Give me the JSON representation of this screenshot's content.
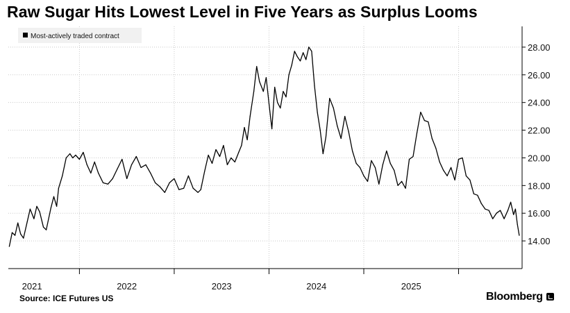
{
  "title": "Raw Sugar Hits Lowest Level in Five Years as Surplus Looms",
  "source": "Source: ICE Futures US",
  "brand": "Bloomberg",
  "colors": {
    "line": "#000000",
    "grid": "#c8c8c8",
    "axis": "#000000",
    "legend_bg": "#f1f1f1"
  },
  "chart_data": {
    "type": "line",
    "title": "Raw Sugar Hits Lowest Level in Five Years as Surplus Looms",
    "xlabel": "",
    "ylabel": "",
    "ylim": [
      12.0,
      29.5
    ],
    "xlim": [
      2020.25,
      2025.67
    ],
    "y_ticks": [
      14,
      16,
      18,
      20,
      22,
      24,
      26,
      28
    ],
    "y_tick_labels": [
      "14.00",
      "16.00",
      "18.00",
      "20.00",
      "22.00",
      "24.00",
      "26.00",
      "28.00"
    ],
    "x_ticks": [
      2021.0,
      2022.0,
      2023.0,
      2024.0,
      2025.0
    ],
    "x_labels": [
      {
        "x": 2020.5,
        "label": "2021"
      },
      {
        "x": 2021.5,
        "label": "2022"
      },
      {
        "x": 2022.5,
        "label": "2023"
      },
      {
        "x": 2023.5,
        "label": "2024"
      },
      {
        "x": 2024.5,
        "label": "2025"
      }
    ],
    "grid": true,
    "legend": {
      "position": "top-left",
      "label": "Most-actively traded contract"
    },
    "series": [
      {
        "name": "Most-actively traded contract",
        "x": [
          2020.26,
          2020.29,
          2020.32,
          2020.35,
          2020.38,
          2020.41,
          2020.45,
          2020.48,
          2020.52,
          2020.55,
          2020.58,
          2020.62,
          2020.65,
          2020.7,
          2020.73,
          2020.76,
          2020.78,
          2020.82,
          2020.86,
          2020.9,
          2020.93,
          2020.96,
          2021.0,
          2021.04,
          2021.08,
          2021.12,
          2021.16,
          2021.2,
          2021.25,
          2021.3,
          2021.35,
          2021.4,
          2021.45,
          2021.5,
          2021.55,
          2021.6,
          2021.65,
          2021.7,
          2021.75,
          2021.8,
          2021.85,
          2021.9,
          2021.95,
          2022.0,
          2022.05,
          2022.1,
          2022.15,
          2022.2,
          2022.25,
          2022.28,
          2022.32,
          2022.36,
          2022.4,
          2022.44,
          2022.48,
          2022.52,
          2022.56,
          2022.6,
          2022.64,
          2022.68,
          2022.71,
          2022.74,
          2022.77,
          2022.8,
          2022.84,
          2022.87,
          2022.9,
          2022.94,
          2022.97,
          2023.0,
          2023.03,
          2023.06,
          2023.09,
          2023.12,
          2023.15,
          2023.18,
          2023.21,
          2023.24,
          2023.27,
          2023.3,
          2023.33,
          2023.36,
          2023.39,
          2023.42,
          2023.45,
          2023.48,
          2023.51,
          2023.54,
          2023.57,
          2023.6,
          2023.64,
          2023.68,
          2023.72,
          2023.76,
          2023.8,
          2023.84,
          2023.88,
          2023.92,
          2023.96,
          2024.0,
          2024.04,
          2024.08,
          2024.12,
          2024.16,
          2024.2,
          2024.24,
          2024.28,
          2024.32,
          2024.36,
          2024.4,
          2024.44,
          2024.48,
          2024.52,
          2024.56,
          2024.6,
          2024.64,
          2024.68,
          2024.72,
          2024.76,
          2024.8,
          2024.84,
          2024.88,
          2024.92,
          2024.96,
          2025.0,
          2025.04,
          2025.08,
          2025.12,
          2025.16,
          2025.2,
          2025.24,
          2025.28,
          2025.32,
          2025.36,
          2025.4
        ],
        "values": [
          13.6,
          14.6,
          14.4,
          15.3,
          14.5,
          14.2,
          15.4,
          16.3,
          15.6,
          16.5,
          16.1,
          15.0,
          14.8,
          16.4,
          17.2,
          16.5,
          17.8,
          18.7,
          20.0,
          20.3,
          20.0,
          20.2,
          19.9,
          20.4,
          19.5,
          18.9,
          19.7,
          18.9,
          18.2,
          18.1,
          18.5,
          19.2,
          19.9,
          18.5,
          19.5,
          20.1,
          19.3,
          19.5,
          18.9,
          18.2,
          17.9,
          17.5,
          18.2,
          18.5,
          17.7,
          17.8,
          18.7,
          17.8,
          17.5,
          17.7,
          19.0,
          20.2,
          19.6,
          20.6,
          20.1,
          20.9,
          19.5,
          20.0,
          19.7,
          20.4,
          20.9,
          22.2,
          21.3,
          23.0,
          24.8,
          26.6,
          25.5,
          24.8,
          25.8,
          23.9,
          22.1,
          25.1,
          24.0,
          23.6,
          24.8,
          24.4,
          26.0,
          26.7,
          27.7,
          27.3,
          27.0,
          27.6,
          27.1,
          28.0,
          27.7,
          25.2,
          23.3,
          22.0,
          20.3,
          21.5,
          24.3,
          23.6,
          22.3,
          21.4,
          23.0,
          21.9,
          20.5,
          19.6,
          19.3,
          18.7,
          18.3,
          19.8,
          19.3,
          18.1,
          19.5,
          20.5,
          19.6,
          19.1,
          18.0,
          18.3,
          17.8,
          19.9,
          20.1,
          21.8,
          23.3,
          22.7,
          22.6,
          21.4,
          20.7,
          19.7,
          19.1,
          18.7,
          19.3,
          18.4,
          19.9,
          20.0,
          18.7,
          18.4,
          17.4,
          17.3,
          16.7,
          16.3,
          16.2,
          15.6,
          16.0
        ],
        "x_tail": [
          2025.44,
          2025.48,
          2025.52,
          2025.55,
          2025.58,
          2025.6,
          2025.62,
          2025.64
        ],
        "values_tail": [
          16.2,
          15.6,
          16.2,
          16.8,
          15.9,
          16.3,
          15.2,
          14.4
        ]
      }
    ]
  }
}
